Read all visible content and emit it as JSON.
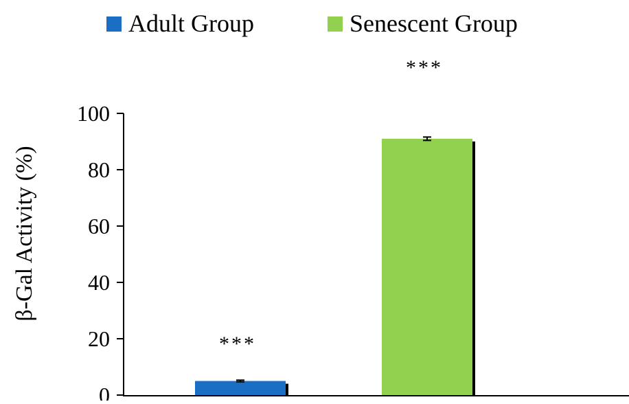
{
  "chart_data": {
    "type": "bar",
    "categories": [
      "Adult Group",
      "Senescent Group"
    ],
    "series": [
      {
        "name": "Adult Group",
        "values": [
          5,
          null
        ],
        "error": [
          0.3,
          null
        ],
        "annotation": "***",
        "color": "#1a6ec4"
      },
      {
        "name": "Senescent Group",
        "values": [
          null,
          91
        ],
        "error": [
          0.6,
          null
        ],
        "annotation": "***",
        "color": "#92d050"
      }
    ],
    "ylabel": "β-Gal Activity (%)",
    "xlabel": "",
    "ylim": [
      0,
      100
    ],
    "yticks": [
      0,
      20,
      40,
      60,
      80,
      100
    ],
    "grid": false,
    "legend_position": "top"
  }
}
